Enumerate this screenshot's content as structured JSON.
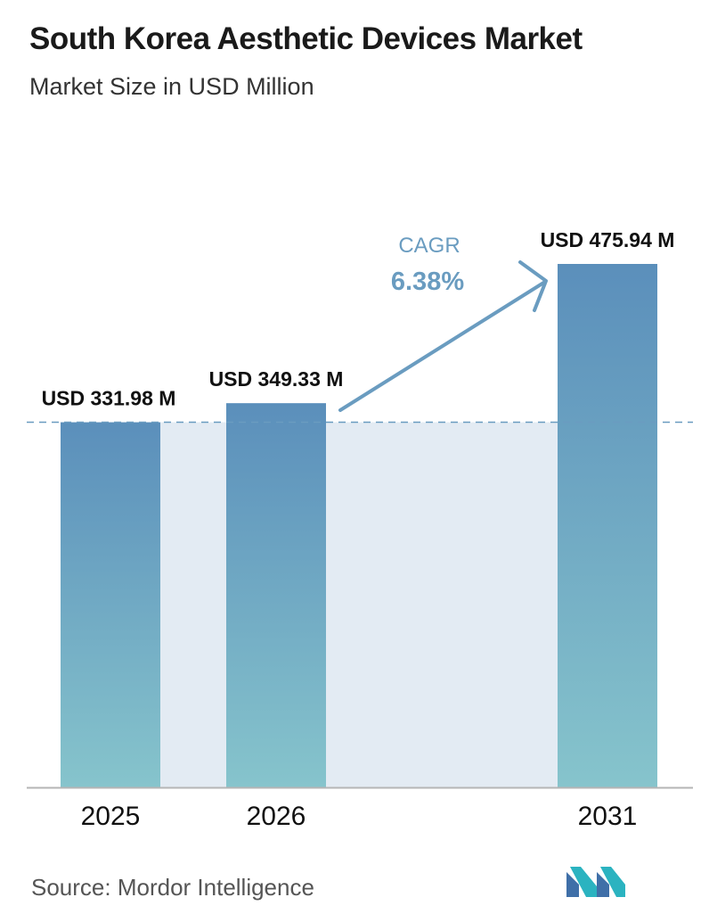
{
  "header": {
    "title": "South Korea Aesthetic Devices Market",
    "subtitle": "Market Size in USD Million"
  },
  "chart_data": {
    "type": "bar",
    "categories": [
      "2025",
      "2026",
      "2031"
    ],
    "values": [
      331.98,
      349.33,
      475.94
    ],
    "value_labels": [
      "USD 331.98 M",
      "USD 349.33 M",
      "USD 475.94 M"
    ],
    "annotation": {
      "title": "CAGR",
      "value": "6.38%"
    },
    "reference_line": 331.98,
    "grid": false,
    "colors": {
      "bar_top": "#5b8fbb",
      "bar_bottom": "#86c4cc",
      "shade": "#e3ebf3",
      "arrow": "#6a9cc0",
      "axis": "#b5b5b5"
    }
  },
  "footer": {
    "source": "Source:  Mordor Intelligence",
    "logo_icon": "mordor-intelligence-logo-icon"
  }
}
